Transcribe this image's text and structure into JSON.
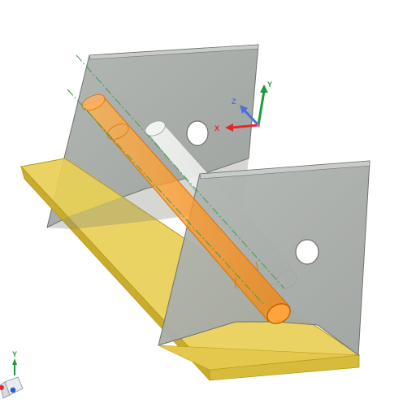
{
  "viewport": {
    "background": "#ffffff"
  },
  "triad": {
    "x_label": "X",
    "y_label": "Y",
    "z_label": "Z",
    "x_color": "#e8262d",
    "y_color": "#1f9a3a",
    "z_color": "#4a6fe0"
  },
  "view_cube": {
    "y_label": "Y"
  },
  "colors": {
    "base_plate": "#e8cf55",
    "base_plate_edge": "#b89a1a",
    "side_plate": "#a9adaa",
    "side_plate_edge": "#6e716f",
    "selected_pin": "#ff9a2a",
    "selected_pin_edge": "#d67000",
    "ghost_pin": "#e6ebe6",
    "centerline": "#3aa04a"
  },
  "components": [
    {
      "name": "base-plate"
    },
    {
      "name": "side-plate-back"
    },
    {
      "name": "side-plate-front"
    },
    {
      "name": "shaft-pin-selected"
    },
    {
      "name": "shaft-pin-ghost"
    }
  ]
}
